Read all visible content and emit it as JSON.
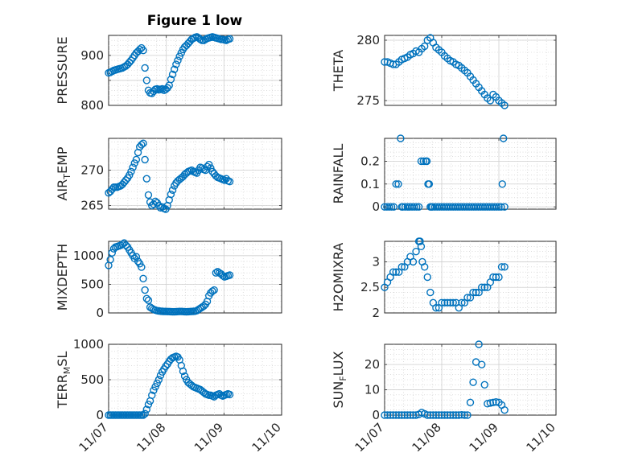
{
  "figure": {
    "title": "Figure 1 low",
    "marker_color": "#0072BD",
    "date_ticks": [
      "11/07",
      "11/08",
      "11/09",
      "11/10"
    ]
  },
  "chart_data": [
    {
      "id": "pressure",
      "type": "scatter",
      "ylabel": "PRESSURE",
      "grid": true,
      "xlim": [
        0,
        3
      ],
      "ylim": [
        800,
        940
      ],
      "yticks": [
        800,
        850,
        900
      ],
      "ytick_labels": [
        "800",
        "",
        "900"
      ],
      "x": [
        0,
        0.03,
        0.06,
        0.09,
        0.12,
        0.15,
        0.18,
        0.21,
        0.24,
        0.27,
        0.3,
        0.33,
        0.36,
        0.39,
        0.42,
        0.45,
        0.48,
        0.51,
        0.54,
        0.57,
        0.6,
        0.63,
        0.66,
        0.69,
        0.72,
        0.75,
        0.78,
        0.81,
        0.84,
        0.87,
        0.9,
        0.93,
        0.96,
        0.99,
        1.02,
        1.05,
        1.08,
        1.11,
        1.14,
        1.17,
        1.2,
        1.23,
        1.26,
        1.29,
        1.32,
        1.35,
        1.38,
        1.41,
        1.44,
        1.47,
        1.5,
        1.53,
        1.56,
        1.59,
        1.62,
        1.65,
        1.68,
        1.71,
        1.74,
        1.77,
        1.8,
        1.83,
        1.86,
        1.89,
        1.92,
        1.95,
        1.98,
        2.01,
        2.04,
        2.07,
        2.1
      ],
      "values": [
        865,
        866,
        868,
        870,
        871,
        872,
        873,
        874,
        875,
        877,
        879,
        882,
        886,
        890,
        895,
        900,
        905,
        908,
        912,
        915,
        910,
        875,
        850,
        830,
        825,
        824,
        828,
        832,
        833,
        831,
        832,
        833,
        830,
        832,
        835,
        840,
        852,
        862,
        872,
        882,
        890,
        898,
        905,
        912,
        917,
        920,
        924,
        928,
        932,
        934,
        936,
        937,
        935,
        932,
        930,
        930,
        932,
        934,
        935,
        936,
        937,
        936,
        935,
        934,
        933,
        932,
        932,
        931,
        930,
        932,
        933
      ]
    },
    {
      "id": "theta",
      "type": "scatter",
      "ylabel": "THETA",
      "grid": true,
      "xlim": [
        0,
        3
      ],
      "ylim": [
        274.6,
        280.4
      ],
      "yticks": [
        275,
        280
      ],
      "ytick_labels": [
        "275",
        "280"
      ],
      "x": [
        0,
        0.05,
        0.1,
        0.15,
        0.2,
        0.25,
        0.3,
        0.35,
        0.4,
        0.45,
        0.5,
        0.55,
        0.6,
        0.65,
        0.7,
        0.75,
        0.8,
        0.85,
        0.9,
        0.95,
        1.0,
        1.05,
        1.1,
        1.15,
        1.2,
        1.25,
        1.3,
        1.35,
        1.4,
        1.45,
        1.5,
        1.55,
        1.6,
        1.65,
        1.7,
        1.75,
        1.8,
        1.85,
        1.9,
        1.95,
        2.0,
        2.05,
        2.1
      ],
      "values": [
        278.2,
        278.2,
        278.1,
        278.0,
        278.0,
        278.2,
        278.4,
        278.5,
        278.6,
        278.8,
        278.9,
        279.1,
        279.0,
        279.3,
        279.5,
        280.0,
        280.2,
        279.8,
        279.4,
        279.2,
        279.0,
        278.7,
        278.5,
        278.3,
        278.2,
        278.0,
        277.9,
        277.7,
        277.5,
        277.3,
        277.0,
        276.7,
        276.4,
        276.1,
        275.8,
        275.5,
        275.2,
        275.0,
        275.5,
        275.3,
        275.0,
        274.8,
        274.6
      ]
    },
    {
      "id": "air-temp",
      "type": "scatter",
      "ylabel": "AIR_TEMP",
      "grid": true,
      "xlim": [
        0,
        3
      ],
      "ylim": [
        264.5,
        274.5
      ],
      "yticks": [
        265,
        270
      ],
      "ytick_labels": [
        "265",
        "270"
      ],
      "x": [
        0,
        0.03,
        0.06,
        0.09,
        0.12,
        0.15,
        0.18,
        0.21,
        0.24,
        0.27,
        0.3,
        0.33,
        0.36,
        0.39,
        0.42,
        0.45,
        0.48,
        0.51,
        0.54,
        0.57,
        0.6,
        0.63,
        0.66,
        0.69,
        0.72,
        0.75,
        0.78,
        0.81,
        0.84,
        0.87,
        0.9,
        0.93,
        0.96,
        0.99,
        1.02,
        1.05,
        1.08,
        1.11,
        1.14,
        1.17,
        1.2,
        1.23,
        1.26,
        1.29,
        1.32,
        1.35,
        1.38,
        1.41,
        1.44,
        1.47,
        1.5,
        1.53,
        1.56,
        1.59,
        1.62,
        1.65,
        1.68,
        1.71,
        1.74,
        1.77,
        1.8,
        1.83,
        1.86,
        1.89,
        1.92,
        1.95,
        1.98,
        2.01,
        2.04,
        2.07,
        2.1
      ],
      "values": [
        266.8,
        267.0,
        267.3,
        267.6,
        267.6,
        267.6,
        267.7,
        267.8,
        268.0,
        268.3,
        268.6,
        268.9,
        269.3,
        269.8,
        270.4,
        271.0,
        271.5,
        272.5,
        273.3,
        273.6,
        273.8,
        271.5,
        268.8,
        266.5,
        265.5,
        265.0,
        265.2,
        265.6,
        265.4,
        265.0,
        264.7,
        264.8,
        264.6,
        264.5,
        265.0,
        265.8,
        266.6,
        267.2,
        267.8,
        268.2,
        268.5,
        268.7,
        268.9,
        269.1,
        269.4,
        269.6,
        269.8,
        269.9,
        270.0,
        269.8,
        269.7,
        269.6,
        270.0,
        270.4,
        270.3,
        270.1,
        270.0,
        270.5,
        270.8,
        270.3,
        269.8,
        269.5,
        269.2,
        269.0,
        268.9,
        268.8,
        268.7,
        268.6,
        268.8,
        268.5,
        268.4
      ]
    },
    {
      "id": "rainfall",
      "type": "scatter",
      "ylabel": "RAINFALL",
      "grid": true,
      "xlim": [
        0,
        3
      ],
      "ylim": [
        -0.01,
        0.3
      ],
      "yticks": [
        0,
        0.1,
        0.2
      ],
      "ytick_labels": [
        "0",
        "0.1",
        "0.2"
      ],
      "x": [
        0,
        0.04,
        0.08,
        0.12,
        0.16,
        0.2,
        0.24,
        0.28,
        0.3,
        0.32,
        0.36,
        0.4,
        0.44,
        0.48,
        0.52,
        0.56,
        0.6,
        0.64,
        0.68,
        0.72,
        0.74,
        0.76,
        0.78,
        0.8,
        0.82,
        0.84,
        0.88,
        0.92,
        0.96,
        1.0,
        1.04,
        1.08,
        1.12,
        1.16,
        1.2,
        1.24,
        1.28,
        1.32,
        1.36,
        1.4,
        1.44,
        1.48,
        1.52,
        1.56,
        1.6,
        1.64,
        1.68,
        1.72,
        1.76,
        1.8,
        1.84,
        1.88,
        1.92,
        1.96,
        2.0,
        2.04,
        2.06,
        2.08,
        2.1
      ],
      "values": [
        0,
        0,
        0,
        0,
        0,
        0.1,
        0.1,
        0.3,
        0,
        0,
        0,
        0,
        0,
        0,
        0,
        0,
        0,
        0.2,
        0.2,
        0.2,
        0.2,
        0.1,
        0.1,
        0,
        0,
        0,
        0,
        0,
        0,
        0,
        0,
        0,
        0,
        0,
        0,
        0,
        0,
        0,
        0,
        0,
        0,
        0,
        0,
        0,
        0,
        0,
        0,
        0,
        0,
        0,
        0,
        0,
        0,
        0,
        0,
        0,
        0.1,
        0.3,
        0
      ]
    },
    {
      "id": "mixdepth",
      "type": "scatter",
      "ylabel": "MIXDEPTH",
      "grid": true,
      "xlim": [
        0,
        3
      ],
      "ylim": [
        0,
        1250
      ],
      "yticks": [
        0,
        500,
        1000
      ],
      "ytick_labels": [
        "0",
        "500",
        "1000"
      ],
      "x": [
        0,
        0.03,
        0.06,
        0.09,
        0.12,
        0.15,
        0.18,
        0.21,
        0.24,
        0.27,
        0.3,
        0.33,
        0.36,
        0.39,
        0.42,
        0.45,
        0.48,
        0.51,
        0.54,
        0.57,
        0.6,
        0.63,
        0.66,
        0.69,
        0.72,
        0.75,
        0.78,
        0.81,
        0.84,
        0.87,
        0.9,
        0.93,
        0.96,
        0.99,
        1.02,
        1.05,
        1.08,
        1.11,
        1.14,
        1.17,
        1.2,
        1.23,
        1.26,
        1.29,
        1.32,
        1.35,
        1.38,
        1.41,
        1.44,
        1.47,
        1.5,
        1.53,
        1.56,
        1.59,
        1.62,
        1.65,
        1.68,
        1.71,
        1.74,
        1.77,
        1.8,
        1.83,
        1.86,
        1.89,
        1.92,
        1.95,
        1.98,
        2.01,
        2.04,
        2.07,
        2.1
      ],
      "values": [
        830,
        930,
        1050,
        1120,
        1150,
        1160,
        1170,
        1180,
        1200,
        1220,
        1180,
        1150,
        1100,
        1050,
        1000,
        950,
        980,
        900,
        860,
        800,
        600,
        400,
        250,
        220,
        100,
        80,
        60,
        50,
        40,
        35,
        30,
        28,
        26,
        25,
        24,
        23,
        22,
        20,
        20,
        22,
        24,
        26,
        25,
        24,
        22,
        20,
        22,
        24,
        26,
        28,
        30,
        40,
        60,
        80,
        100,
        120,
        150,
        200,
        300,
        350,
        380,
        400,
        700,
        720,
        700,
        680,
        650,
        630,
        640,
        650,
        660
      ]
    },
    {
      "id": "h2omixra",
      "type": "scatter",
      "ylabel": "H2OMIXRA",
      "grid": true,
      "xlim": [
        0,
        3
      ],
      "ylim": [
        2,
        3.4
      ],
      "yticks": [
        2,
        2.5,
        3
      ],
      "ytick_labels": [
        "2",
        "2.5",
        "3"
      ],
      "x": [
        0,
        0.05,
        0.1,
        0.15,
        0.2,
        0.25,
        0.3,
        0.35,
        0.4,
        0.45,
        0.5,
        0.55,
        0.6,
        0.62,
        0.64,
        0.66,
        0.7,
        0.75,
        0.8,
        0.85,
        0.9,
        0.95,
        1.0,
        1.05,
        1.1,
        1.15,
        1.2,
        1.25,
        1.3,
        1.35,
        1.4,
        1.45,
        1.5,
        1.55,
        1.6,
        1.65,
        1.7,
        1.75,
        1.8,
        1.85,
        1.9,
        1.95,
        2.0,
        2.05,
        2.1
      ],
      "values": [
        2.5,
        2.6,
        2.7,
        2.8,
        2.8,
        2.8,
        2.9,
        2.9,
        3.0,
        3.1,
        3.0,
        3.2,
        3.4,
        3.4,
        3.3,
        3.0,
        2.9,
        2.7,
        2.4,
        2.2,
        2.1,
        2.1,
        2.2,
        2.2,
        2.2,
        2.2,
        2.2,
        2.2,
        2.1,
        2.2,
        2.2,
        2.3,
        2.3,
        2.4,
        2.4,
        2.4,
        2.5,
        2.5,
        2.5,
        2.6,
        2.7,
        2.7,
        2.7,
        2.9,
        2.9
      ]
    },
    {
      "id": "terr-msl",
      "type": "scatter",
      "ylabel": "TERR_MSL",
      "grid": true,
      "xlim": [
        0,
        3
      ],
      "ylim": [
        0,
        1000
      ],
      "yticks": [
        0,
        500,
        1000
      ],
      "ytick_labels": [
        "0",
        "500",
        "1000"
      ],
      "x": [
        0,
        0.03,
        0.06,
        0.09,
        0.12,
        0.15,
        0.18,
        0.21,
        0.24,
        0.27,
        0.3,
        0.33,
        0.36,
        0.39,
        0.42,
        0.45,
        0.48,
        0.51,
        0.54,
        0.57,
        0.6,
        0.63,
        0.66,
        0.69,
        0.72,
        0.75,
        0.78,
        0.81,
        0.84,
        0.87,
        0.9,
        0.93,
        0.96,
        0.99,
        1.02,
        1.05,
        1.08,
        1.11,
        1.14,
        1.17,
        1.2,
        1.23,
        1.26,
        1.29,
        1.32,
        1.35,
        1.38,
        1.41,
        1.44,
        1.47,
        1.5,
        1.53,
        1.56,
        1.59,
        1.62,
        1.65,
        1.68,
        1.71,
        1.74,
        1.77,
        1.8,
        1.83,
        1.86,
        1.89,
        1.92,
        1.95,
        1.98,
        2.01,
        2.04,
        2.07,
        2.1
      ],
      "values": [
        0,
        0,
        0,
        0,
        0,
        0,
        0,
        0,
        0,
        0,
        0,
        0,
        0,
        0,
        0,
        0,
        0,
        0,
        0,
        0,
        0,
        20,
        80,
        150,
        200,
        280,
        350,
        400,
        450,
        500,
        560,
        610,
        650,
        690,
        720,
        760,
        790,
        810,
        820,
        830,
        820,
        780,
        700,
        620,
        550,
        500,
        460,
        440,
        420,
        400,
        390,
        380,
        370,
        360,
        340,
        320,
        300,
        290,
        280,
        280,
        270,
        260,
        280,
        290,
        300,
        280,
        270,
        280,
        290,
        300,
        290
      ]
    },
    {
      "id": "sun-flux",
      "type": "scatter",
      "ylabel": "SUN_FLUX",
      "grid": true,
      "xlim": [
        0,
        3
      ],
      "ylim": [
        0,
        28
      ],
      "yticks": [
        0,
        10,
        20
      ],
      "ytick_labels": [
        "0",
        "10",
        "20"
      ],
      "x": [
        0,
        0.05,
        0.1,
        0.15,
        0.2,
        0.25,
        0.3,
        0.35,
        0.4,
        0.45,
        0.5,
        0.55,
        0.6,
        0.65,
        0.7,
        0.75,
        0.8,
        0.85,
        0.9,
        0.95,
        1.0,
        1.05,
        1.1,
        1.15,
        1.2,
        1.25,
        1.3,
        1.35,
        1.4,
        1.45,
        1.5,
        1.55,
        1.6,
        1.65,
        1.7,
        1.75,
        1.8,
        1.85,
        1.9,
        1.95,
        2.0,
        2.05,
        2.1
      ],
      "values": [
        0,
        0,
        0,
        0,
        0,
        0,
        0,
        0,
        0,
        0,
        0,
        0,
        0.3,
        1,
        0.5,
        0,
        0,
        0,
        0,
        0,
        0,
        0,
        0,
        0,
        0,
        0,
        0,
        0.1,
        0,
        0,
        5,
        13,
        21,
        28,
        20,
        12,
        4.5,
        4.8,
        5,
        5.2,
        5,
        4,
        2
      ]
    }
  ]
}
